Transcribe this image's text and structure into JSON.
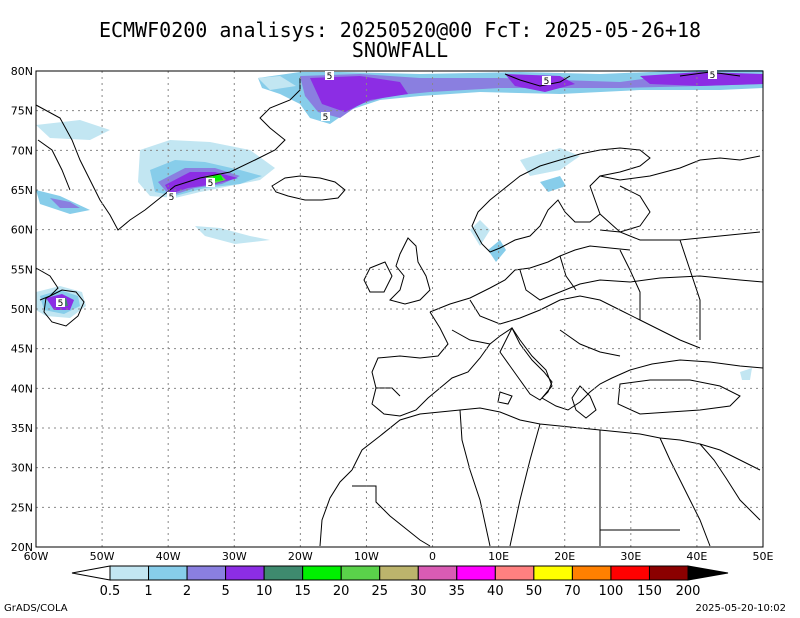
{
  "title": {
    "line1": "ECMWF0200 analisys: 20250520@00 FcT: 2025-05-26+18",
    "line2": "SNOWFALL"
  },
  "axes": {
    "lat_labels": [
      "80N",
      "75N",
      "70N",
      "65N",
      "60N",
      "55N",
      "50N",
      "45N",
      "40N",
      "35N",
      "30N",
      "25N",
      "20N"
    ],
    "lon_labels": [
      "60W",
      "50W",
      "40W",
      "30W",
      "20W",
      "10W",
      "0",
      "10E",
      "20E",
      "30E",
      "40E",
      "50E"
    ],
    "lat_values": [
      80,
      75,
      70,
      65,
      60,
      55,
      50,
      45,
      40,
      35,
      30,
      25,
      20
    ],
    "lon_values": [
      -60,
      -50,
      -40,
      -30,
      -20,
      -10,
      0,
      10,
      20,
      30,
      40,
      50
    ]
  },
  "legend": {
    "levels": [
      "0.5",
      "1",
      "2",
      "5",
      "10",
      "15",
      "20",
      "25",
      "30",
      "35",
      "40",
      "50",
      "70",
      "100",
      "150",
      "200"
    ],
    "colors": [
      "#ffffff",
      "#c2e6f2",
      "#87cdea",
      "#8a7fe0",
      "#8c2de4",
      "#3e8a6e",
      "#00f000",
      "#5ad24a",
      "#bcb46c",
      "#d95bb4",
      "#ff00ff",
      "#ff8080",
      "#ffff00",
      "#ff8000",
      "#ff0000",
      "#8b0000",
      "#000000"
    ]
  },
  "contour_labels": [
    "5",
    "5",
    "5",
    "5",
    "5",
    "5",
    "5"
  ],
  "footer": {
    "left": "GrADS/COLA",
    "right": "2025-05-20-10:02"
  }
}
